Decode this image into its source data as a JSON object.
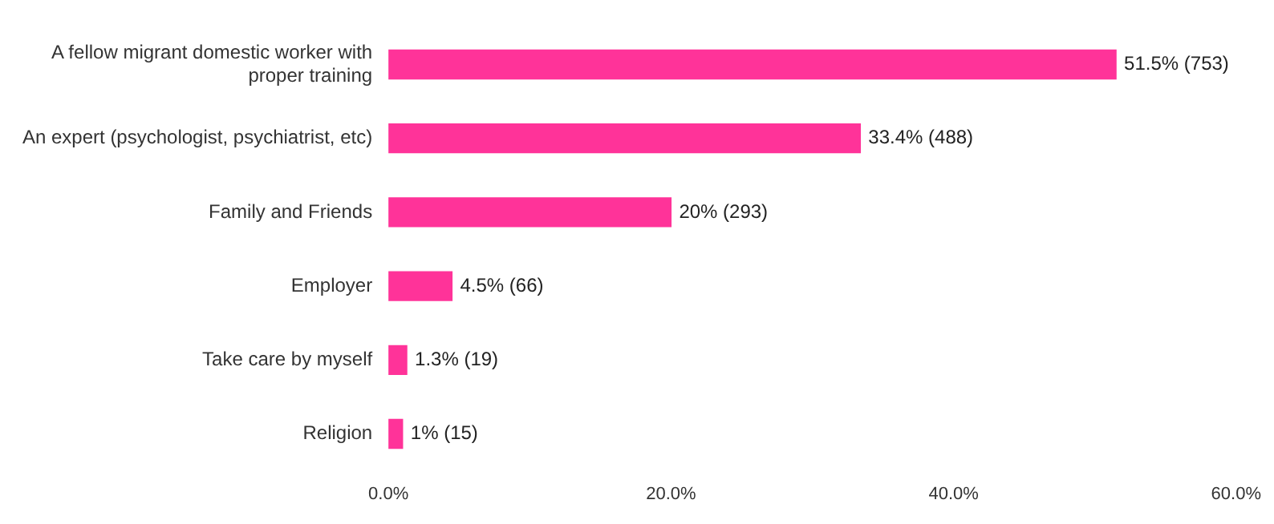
{
  "chart_data": {
    "type": "bar",
    "orientation": "horizontal",
    "categories": [
      "A fellow migrant domestic worker with proper training",
      "An expert (psychologist, psychiatrist, etc)",
      "Family and Friends",
      "Employer",
      "Take care by myself",
      "Religion"
    ],
    "values": [
      51.5,
      33.4,
      20,
      4.5,
      1.3,
      1
    ],
    "value_labels": [
      "51.5% (753)",
      "33.4% (488)",
      "20% (293)",
      "4.5% (66)",
      "1.3% (19)",
      "1% (15)"
    ],
    "color": "#ff3399",
    "xlim": [
      0,
      60
    ],
    "xticks": [
      {
        "value": 0,
        "label": "0.0%"
      },
      {
        "value": 20,
        "label": "20.0%"
      },
      {
        "value": 40,
        "label": "40.0%"
      },
      {
        "value": 60,
        "label": "60.0%"
      }
    ],
    "grid": false,
    "legend": false
  }
}
